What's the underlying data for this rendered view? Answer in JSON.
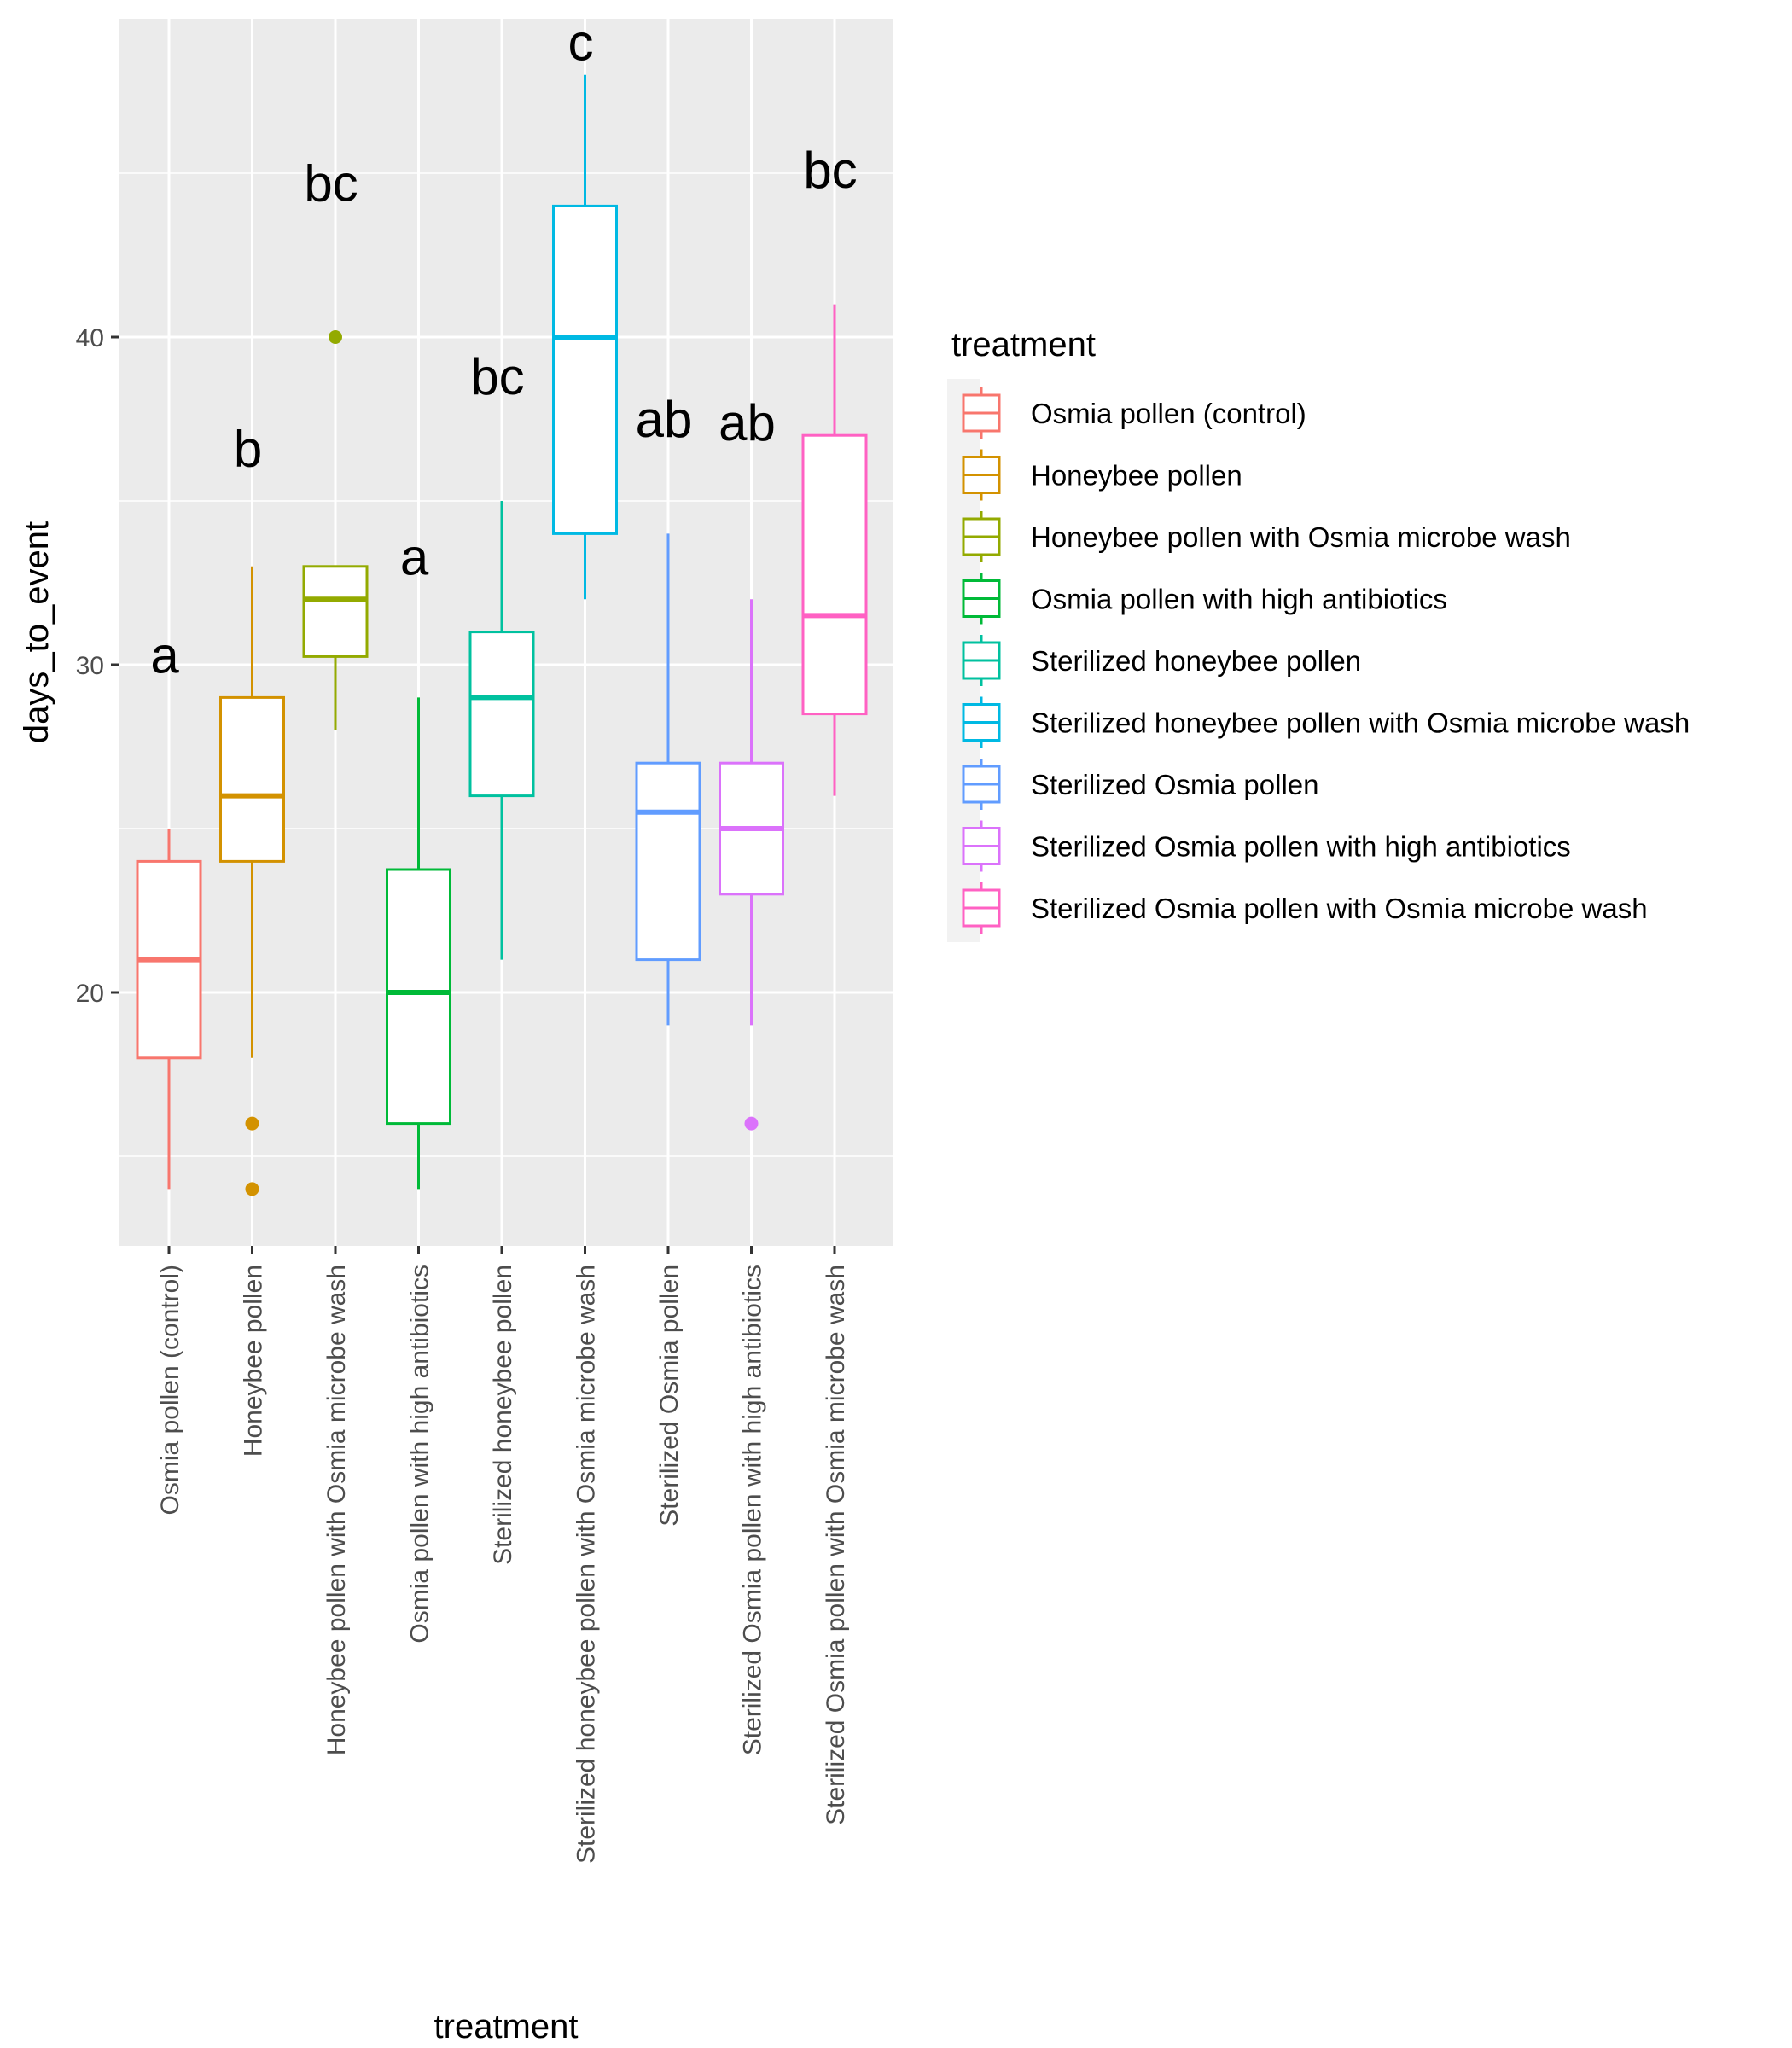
{
  "chart_data": {
    "type": "box",
    "xlabel": "treatment",
    "ylabel": "days_to_event",
    "ylim": [
      13,
      49
    ],
    "y_ticks": [
      20,
      30,
      40
    ],
    "y_minor_ticks": [
      15,
      25,
      35,
      45
    ],
    "grid": true,
    "legend": {
      "title": "treatment",
      "placement": "right"
    },
    "categories": [
      "Osmia pollen (control)",
      "Honeybee pollen",
      "Honeybee pollen with Osmia microbe wash",
      "Osmia pollen with high antibiotics",
      "Sterilized honeybee pollen",
      "Sterilized honeybee pollen with Osmia microbe wash",
      "Sterilized Osmia pollen",
      "Sterilized Osmia pollen with high antibiotics",
      "Sterilized Osmia pollen with Osmia microbe wash"
    ],
    "series": [
      {
        "name": "Osmia pollen (control)",
        "color": "#F8766D",
        "whisker_low": 14,
        "q1": 18,
        "median": 21,
        "q3": 24,
        "whisker_high": 25,
        "outliers": [],
        "label": "a",
        "label_y": 30.3
      },
      {
        "name": "Honeybee pollen",
        "color": "#D39200",
        "whisker_low": 18,
        "q1": 24,
        "median": 26,
        "q3": 29,
        "whisker_high": 33,
        "outliers": [
          16,
          14
        ],
        "label": "b",
        "label_y": 36.6
      },
      {
        "name": "Honeybee pollen with Osmia microbe wash",
        "color": "#93AA00",
        "whisker_low": 28,
        "q1": 30.25,
        "median": 32,
        "q3": 33,
        "whisker_high": 33,
        "outliers": [
          40
        ],
        "label": "bc",
        "label_y": 44.7
      },
      {
        "name": "Osmia pollen with high antibiotics",
        "color": "#00BA38",
        "whisker_low": 14,
        "q1": 16,
        "median": 20,
        "q3": 23.75,
        "whisker_high": 29,
        "outliers": [],
        "label": "a",
        "label_y": 33.3
      },
      {
        "name": "Sterilized honeybee pollen",
        "color": "#00C19F",
        "whisker_low": 21,
        "q1": 26,
        "median": 29,
        "q3": 31,
        "whisker_high": 35,
        "outliers": [],
        "label": "bc",
        "label_y": 38.8
      },
      {
        "name": "Sterilized honeybee pollen with Osmia microbe wash",
        "color": "#00B9E3",
        "whisker_low": 32,
        "q1": 34,
        "median": 40,
        "q3": 44,
        "whisker_high": 48,
        "outliers": [],
        "label": "c",
        "label_y": 49
      },
      {
        "name": "Sterilized Osmia pollen",
        "color": "#619CFF",
        "whisker_low": 19,
        "q1": 21,
        "median": 25.5,
        "q3": 27,
        "whisker_high": 34,
        "outliers": [],
        "label": "ab",
        "label_y": 37.5
      },
      {
        "name": "Sterilized Osmia pollen with high antibiotics",
        "color": "#DB72FB",
        "whisker_low": 19,
        "q1": 23,
        "median": 25,
        "q3": 27,
        "whisker_high": 32,
        "outliers": [
          16
        ],
        "label": "ab",
        "label_y": 37.4
      },
      {
        "name": "Sterilized Osmia pollen with Osmia microbe wash",
        "color": "#FF61C3",
        "whisker_low": 26,
        "q1": 28.5,
        "median": 31.5,
        "q3": 37,
        "whisker_high": 41,
        "outliers": [],
        "label": "bc",
        "label_y": 45.1
      }
    ]
  }
}
